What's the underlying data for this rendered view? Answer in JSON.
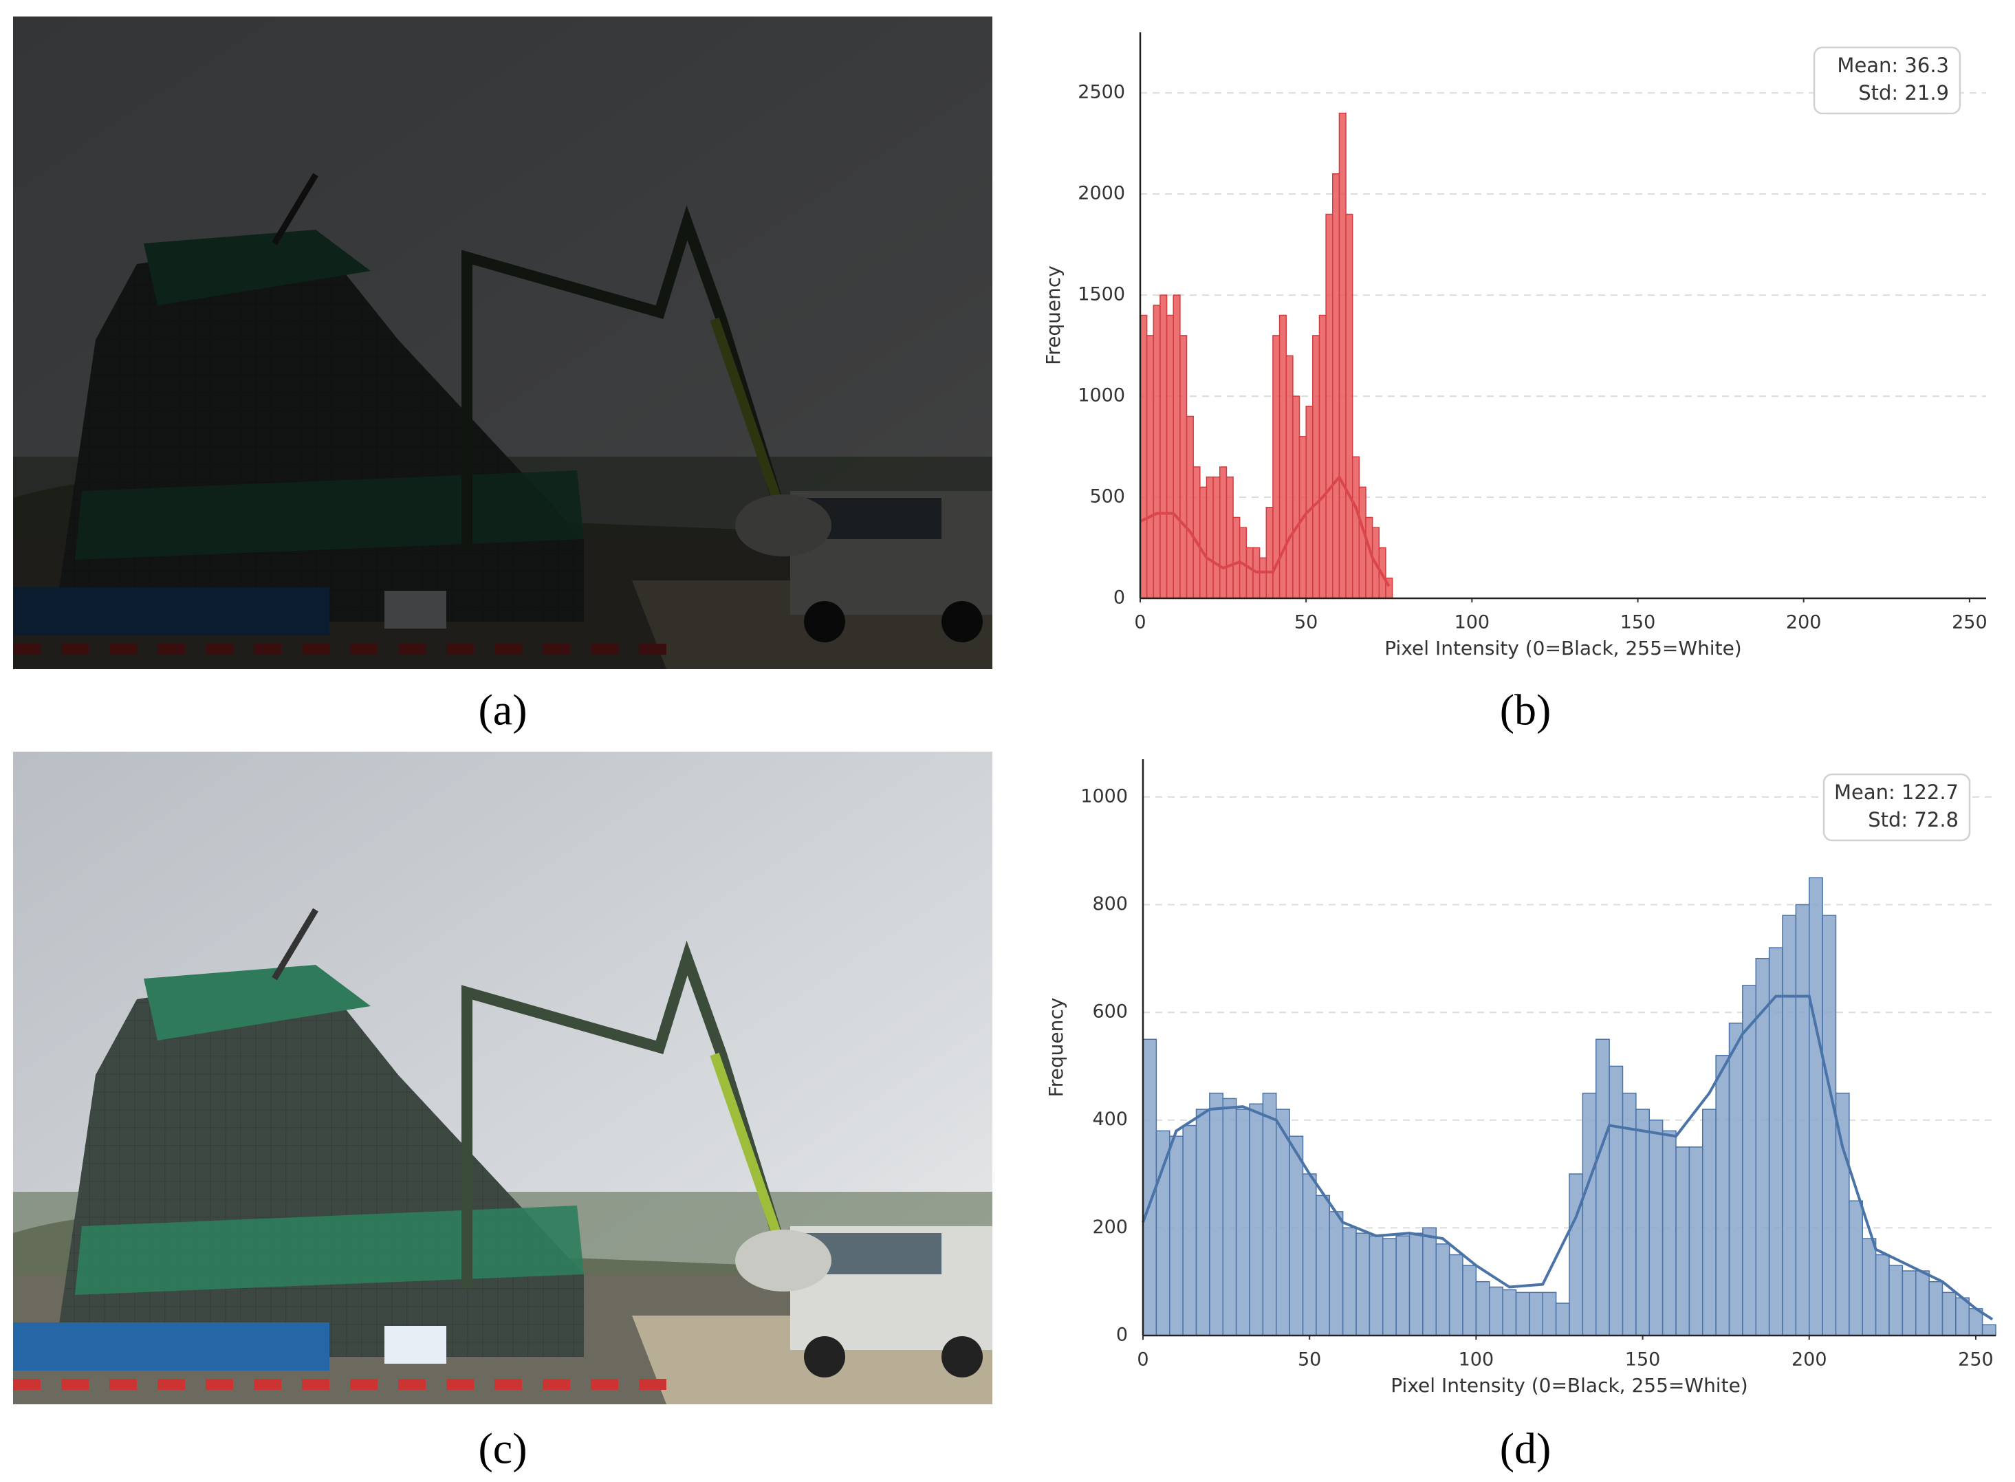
{
  "captions": [
    "(a)",
    "(b)",
    "(c)",
    "(d)"
  ],
  "chart_data": [
    {
      "type": "histogram",
      "xlabel": "Pixel Intensity (0=Black, 255=White)",
      "ylabel": "Frequency",
      "stats": [
        "Mean: 36.3",
        "Std: 21.9"
      ],
      "color": "#e8585a",
      "edge_color": "#d23c3f",
      "line_color": "#d9474a",
      "bins": [
        0,
        2,
        4,
        6,
        8,
        10,
        12,
        14,
        16,
        18,
        20,
        22,
        24,
        26,
        28,
        30,
        32,
        34,
        36,
        38,
        40,
        42,
        44,
        46,
        48,
        50,
        52,
        54,
        56,
        58,
        60,
        62,
        64,
        66,
        68,
        70,
        72,
        74,
        76
      ],
      "values": [
        1400,
        1300,
        1450,
        1500,
        1400,
        1500,
        1300,
        900,
        650,
        550,
        600,
        600,
        650,
        600,
        400,
        350,
        250,
        250,
        200,
        450,
        1300,
        1400,
        1200,
        1000,
        800,
        950,
        1300,
        1400,
        1900,
        2100,
        2400,
        1900,
        700,
        550,
        400,
        350,
        250,
        100
      ],
      "kde": {
        "x": [
          0,
          5,
          10,
          15,
          20,
          25,
          30,
          35,
          40,
          45,
          50,
          55,
          60,
          65,
          70,
          75
        ],
        "values": [
          380,
          420,
          420,
          330,
          200,
          150,
          180,
          130,
          130,
          300,
          420,
          500,
          600,
          450,
          200,
          60
        ]
      },
      "xlim": [
        0,
        255
      ],
      "ylim": [
        0,
        2800
      ],
      "xticks": [
        0,
        50,
        100,
        150,
        200,
        250
      ],
      "yticks": [
        0,
        500,
        1000,
        1500,
        2000,
        2500
      ],
      "grid": true
    },
    {
      "type": "histogram",
      "xlabel": "Pixel Intensity (0=Black, 255=White)",
      "ylabel": "Frequency",
      "stats": [
        "Mean: 122.7",
        "Std: 72.8"
      ],
      "color": "#88a6cb",
      "edge_color": "#4a73a8",
      "line_color": "#4a73a8",
      "bins": [
        0,
        4,
        8,
        12,
        16,
        20,
        24,
        28,
        32,
        36,
        40,
        44,
        48,
        52,
        56,
        60,
        64,
        68,
        72,
        76,
        80,
        84,
        88,
        92,
        96,
        100,
        104,
        108,
        112,
        116,
        120,
        124,
        128,
        132,
        136,
        140,
        144,
        148,
        152,
        156,
        160,
        164,
        168,
        172,
        176,
        180,
        184,
        188,
        192,
        196,
        200,
        204,
        208,
        212,
        216,
        220,
        224,
        228,
        232,
        236,
        240,
        244,
        248,
        252,
        256
      ],
      "values": [
        550,
        380,
        370,
        390,
        420,
        450,
        440,
        420,
        430,
        450,
        420,
        370,
        300,
        260,
        230,
        200,
        190,
        185,
        180,
        185,
        190,
        200,
        170,
        150,
        130,
        100,
        90,
        85,
        80,
        80,
        80,
        60,
        300,
        450,
        550,
        500,
        450,
        420,
        400,
        380,
        350,
        350,
        420,
        520,
        580,
        650,
        700,
        720,
        780,
        800,
        850,
        780,
        450,
        250,
        180,
        150,
        130,
        120,
        120,
        100,
        80,
        70,
        50,
        20
      ],
      "kde": {
        "x": [
          0,
          10,
          20,
          30,
          40,
          50,
          60,
          70,
          80,
          90,
          100,
          110,
          120,
          130,
          140,
          150,
          160,
          170,
          180,
          190,
          200,
          210,
          220,
          230,
          240,
          250,
          255
        ],
        "values": [
          210,
          380,
          420,
          425,
          400,
          300,
          210,
          185,
          190,
          180,
          130,
          90,
          95,
          220,
          390,
          380,
          370,
          450,
          560,
          630,
          630,
          350,
          160,
          130,
          100,
          50,
          30
        ]
      },
      "xlim": [
        0,
        256
      ],
      "ylim": [
        0,
        1070
      ],
      "xticks": [
        0,
        50,
        100,
        150,
        200,
        250
      ],
      "yticks": [
        0,
        200,
        400,
        600,
        800,
        1000
      ],
      "grid": true
    }
  ]
}
